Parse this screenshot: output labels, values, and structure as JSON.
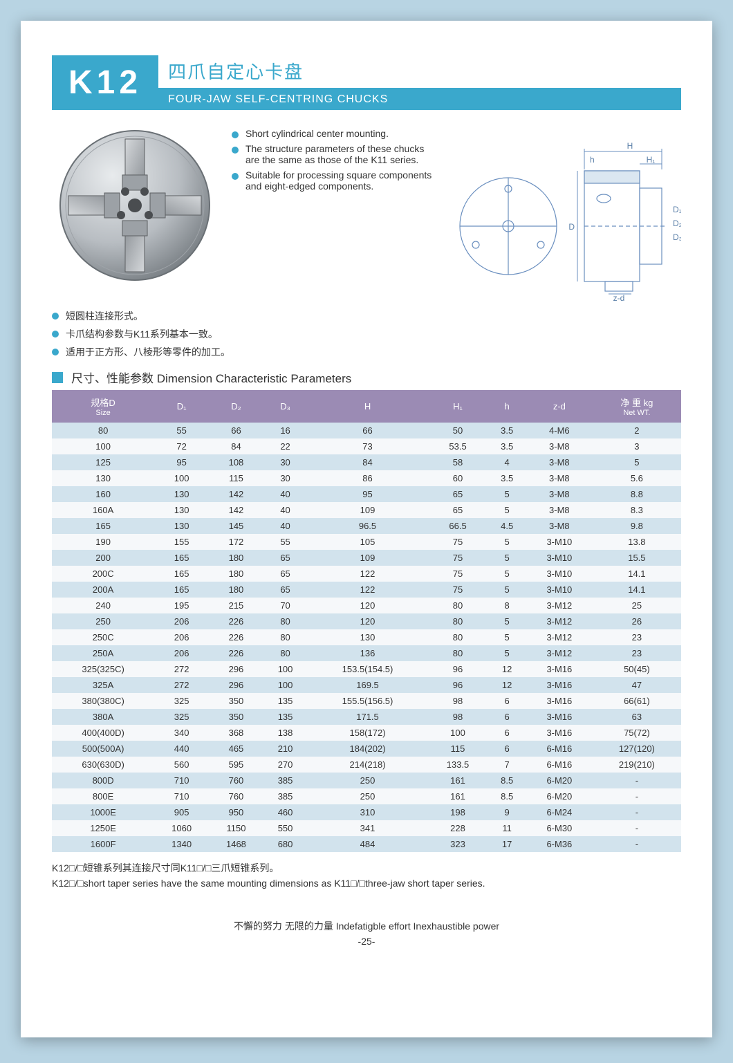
{
  "header": {
    "code": "K12",
    "title_cn": "四爪自定心卡盘",
    "title_en": "FOUR-JAW  SELF-CENTRING  CHUCKS"
  },
  "features_en": [
    "Short cylindrical center mounting.",
    "The structure parameters of these chucks are the same as those of the K11 series.",
    "Suitable for processing square components and eight-edged components."
  ],
  "features_cn": [
    "短圆柱连接形式。",
    "卡爪结构参数与K11系列基本一致。",
    "适用于正方形、八棱形等零件的加工。"
  ],
  "section_title": "尺寸、性能参数   Dimension  Characteristic Parameters",
  "diagram": {
    "labels": {
      "H": "H",
      "H1": "H₁",
      "h": "h",
      "D": "D",
      "D1": "D₁",
      "D2": "D₂",
      "D3": "D₃",
      "zd": "z-d"
    },
    "colors": {
      "stroke": "#6a8fbf",
      "text": "#5a7fa8",
      "bg": "#eef4f9"
    }
  },
  "product_svg": {
    "body_light": "#d8dcdf",
    "body_dark": "#8e9499",
    "jaw": "#b0b5ba",
    "bolt": "#5c5f62"
  },
  "table": {
    "header_bg": "#9b8bb4",
    "header_fg": "#ffffff",
    "row_even_bg": "#d2e3ed",
    "row_odd_bg": "#f6f8fa",
    "columns": [
      {
        "label": "规格D",
        "sub": "Size"
      },
      {
        "label": "D₁",
        "sub": ""
      },
      {
        "label": "D₂",
        "sub": ""
      },
      {
        "label": "D₃",
        "sub": ""
      },
      {
        "label": "H",
        "sub": ""
      },
      {
        "label": "H₁",
        "sub": ""
      },
      {
        "label": "h",
        "sub": ""
      },
      {
        "label": "z-d",
        "sub": ""
      },
      {
        "label": "净 重 kg",
        "sub": "Net WT."
      }
    ],
    "rows": [
      [
        "80",
        "55",
        "66",
        "16",
        "66",
        "50",
        "3.5",
        "4-M6",
        "2"
      ],
      [
        "100",
        "72",
        "84",
        "22",
        "73",
        "53.5",
        "3.5",
        "3-M8",
        "3"
      ],
      [
        "125",
        "95",
        "108",
        "30",
        "84",
        "58",
        "4",
        "3-M8",
        "5"
      ],
      [
        "130",
        "100",
        "115",
        "30",
        "86",
        "60",
        "3.5",
        "3-M8",
        "5.6"
      ],
      [
        "160",
        "130",
        "142",
        "40",
        "95",
        "65",
        "5",
        "3-M8",
        "8.8"
      ],
      [
        "160A",
        "130",
        "142",
        "40",
        "109",
        "65",
        "5",
        "3-M8",
        "8.3"
      ],
      [
        "165",
        "130",
        "145",
        "40",
        "96.5",
        "66.5",
        "4.5",
        "3-M8",
        "9.8"
      ],
      [
        "190",
        "155",
        "172",
        "55",
        "105",
        "75",
        "5",
        "3-M10",
        "13.8"
      ],
      [
        "200",
        "165",
        "180",
        "65",
        "109",
        "75",
        "5",
        "3-M10",
        "15.5"
      ],
      [
        "200C",
        "165",
        "180",
        "65",
        "122",
        "75",
        "5",
        "3-M10",
        "14.1"
      ],
      [
        "200A",
        "165",
        "180",
        "65",
        "122",
        "75",
        "5",
        "3-M10",
        "14.1"
      ],
      [
        "240",
        "195",
        "215",
        "70",
        "120",
        "80",
        "8",
        "3-M12",
        "25"
      ],
      [
        "250",
        "206",
        "226",
        "80",
        "120",
        "80",
        "5",
        "3-M12",
        "26"
      ],
      [
        "250C",
        "206",
        "226",
        "80",
        "130",
        "80",
        "5",
        "3-M12",
        "23"
      ],
      [
        "250A",
        "206",
        "226",
        "80",
        "136",
        "80",
        "5",
        "3-M12",
        "23"
      ],
      [
        "325(325C)",
        "272",
        "296",
        "100",
        "153.5(154.5)",
        "96",
        "12",
        "3-M16",
        "50(45)"
      ],
      [
        "325A",
        "272",
        "296",
        "100",
        "169.5",
        "96",
        "12",
        "3-M16",
        "47"
      ],
      [
        "380(380C)",
        "325",
        "350",
        "135",
        "155.5(156.5)",
        "98",
        "6",
        "3-M16",
        "66(61)"
      ],
      [
        "380A",
        "325",
        "350",
        "135",
        "171.5",
        "98",
        "6",
        "3-M16",
        "63"
      ],
      [
        "400(400D)",
        "340",
        "368",
        "138",
        "158(172)",
        "100",
        "6",
        "3-M16",
        "75(72)"
      ],
      [
        "500(500A)",
        "440",
        "465",
        "210",
        "184(202)",
        "115",
        "6",
        "6-M16",
        "127(120)"
      ],
      [
        "630(630D)",
        "560",
        "595",
        "270",
        "214(218)",
        "133.5",
        "7",
        "6-M16",
        "219(210)"
      ],
      [
        "800D",
        "710",
        "760",
        "385",
        "250",
        "161",
        "8.5",
        "6-M20",
        "-"
      ],
      [
        "800E",
        "710",
        "760",
        "385",
        "250",
        "161",
        "8.5",
        "6-M20",
        "-"
      ],
      [
        "1000E",
        "905",
        "950",
        "460",
        "310",
        "198",
        "9",
        "6-M24",
        "-"
      ],
      [
        "1250E",
        "1060",
        "1150",
        "550",
        "341",
        "228",
        "11",
        "6-M30",
        "-"
      ],
      [
        "1600F",
        "1340",
        "1468",
        "680",
        "484",
        "323",
        "17",
        "6-M36",
        "-"
      ]
    ]
  },
  "footnote_cn": "K12□/□短锥系列其连接尺寸同K11□/□三爪短锥系列。",
  "footnote_en": "K12□/□short taper series have the same mounting dimensions as K11□/□three-jaw short taper series.",
  "footer": {
    "slogan": "不懈的努力   无限的力量   Indefatigble effort  Inexhaustible power",
    "page_no": "-25-"
  }
}
